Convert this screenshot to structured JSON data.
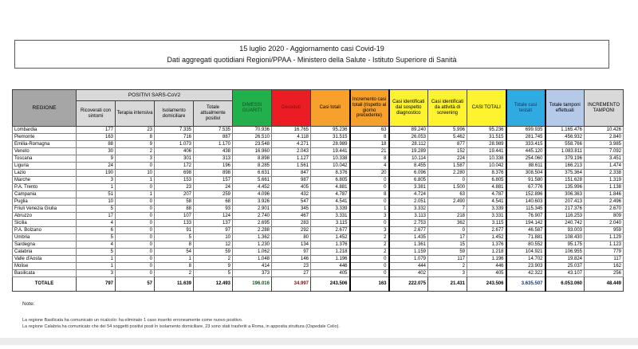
{
  "title": {
    "line1": "15 luglio 2020 - Aggiornamento casi Covid-19",
    "line2": "Dati aggregati quotidiani Regioni/PPAA - Ministero della Salute - Istituto Superiore di Sanità"
  },
  "colors": {
    "header_gray": "#a6a6a6",
    "subheader_gray": "#d9d9d9",
    "green": "#22b04c",
    "red": "#ec1c24",
    "orange": "#f7a02b",
    "yellow": "#fdf32e",
    "cyan": "#2fabe1",
    "periwinkle": "#b5c9e8"
  },
  "chart_data": {
    "type": "table",
    "group_headers": {
      "regione": "REGIONE",
      "positivi": "POSITIVI SARS-CoV2"
    },
    "columns": [
      {
        "label": "Ricoverati con sintomi",
        "type": "sub"
      },
      {
        "label": "Terapia intensiva",
        "type": "sub"
      },
      {
        "label": "Isolamento domiciliare",
        "type": "sub"
      },
      {
        "label": "Totale attualmente positivi",
        "type": "sub"
      },
      {
        "label": "DIMESSI GUARITI",
        "type": "green"
      },
      {
        "label": "Deceduti",
        "type": "red"
      },
      {
        "label": "Casi totali",
        "type": "orange"
      },
      {
        "label": "Incremento casi totali (rispetto al giorno precedente)",
        "type": "orange",
        "thick": true
      },
      {
        "label": "Casi identificati dal sospetto diagnostico",
        "type": "yellow"
      },
      {
        "label": "Casi identificati da attività di screening",
        "type": "yellow"
      },
      {
        "label": "CASI TOTALI",
        "type": "yellow"
      },
      {
        "label": "Totale casi testati",
        "type": "cyan",
        "thick": true
      },
      {
        "label": "Totale tamponi effettuati",
        "type": "peri"
      },
      {
        "label": "INCREMENTO TAMPONI",
        "type": "graylight"
      }
    ],
    "rows": [
      {
        "regione": "Lombardia",
        "values": [
          "177",
          "23",
          "7.335",
          "7.535",
          "70.936",
          "16.765",
          "95.236",
          "63",
          "89.240",
          "5.996",
          "95.236",
          "699.935",
          "1.165.476",
          "10.426"
        ]
      },
      {
        "regione": "Piemonte",
        "values": [
          "163",
          "8",
          "716",
          "887",
          "26.510",
          "4.118",
          "31.515",
          "8",
          "26.053",
          "5.462",
          "31.515",
          "281.745",
          "456.932",
          "2.840"
        ]
      },
      {
        "regione": "Emilia-Romagna",
        "values": [
          "88",
          "9",
          "1.073",
          "1.170",
          "23.548",
          "4.271",
          "28.989",
          "18",
          "28.112",
          "877",
          "28.989",
          "333.415",
          "558.766",
          "3.985"
        ]
      },
      {
        "regione": "Veneto",
        "values": [
          "30",
          "2",
          "406",
          "438",
          "16.960",
          "2.043",
          "19.441",
          "21",
          "19.289",
          "152",
          "19.441",
          "445.120",
          "1.083.811",
          "7.092"
        ]
      },
      {
        "regione": "Toscana",
        "values": [
          "9",
          "3",
          "301",
          "313",
          "8.898",
          "1.127",
          "10.338",
          "8",
          "10.114",
          "224",
          "10.338",
          "254.060",
          "379.196",
          "3.451"
        ]
      },
      {
        "regione": "Liguria",
        "values": [
          "24",
          "0",
          "172",
          "196",
          "8.285",
          "1.561",
          "10.042",
          "4",
          "8.455",
          "1.587",
          "10.042",
          "88.611",
          "166.213",
          "1.474"
        ]
      },
      {
        "regione": "Lazio",
        "values": [
          "190",
          "10",
          "698",
          "898",
          "6.631",
          "847",
          "8.376",
          "20",
          "6.096",
          "2.280",
          "8.376",
          "308.504",
          "375.364",
          "2.338"
        ]
      },
      {
        "regione": "Marche",
        "values": [
          "3",
          "1",
          "153",
          "157",
          "5.661",
          "987",
          "6.805",
          "0",
          "6.805",
          "0",
          "6.805",
          "91.580",
          "151.628",
          "1.319"
        ]
      },
      {
        "regione": "P.A. Trento",
        "values": [
          "1",
          "0",
          "23",
          "24",
          "4.452",
          "405",
          "4.881",
          "0",
          "3.381",
          "1.500",
          "4.881",
          "67.776",
          "135.996",
          "1.138"
        ]
      },
      {
        "regione": "Campania",
        "values": [
          "51",
          "1",
          "207",
          "259",
          "4.096",
          "432",
          "4.787",
          "8",
          "4.724",
          "63",
          "4.787",
          "152.896",
          "306.363",
          "1.846"
        ]
      },
      {
        "regione": "Puglia",
        "values": [
          "10",
          "0",
          "58",
          "68",
          "3.926",
          "547",
          "4.541",
          "0",
          "2.051",
          "2.490",
          "4.541",
          "140.603",
          "207.413",
          "2.496"
        ]
      },
      {
        "regione": "Friuli Venezia Giulia",
        "values": [
          "5",
          "0",
          "88",
          "93",
          "2.901",
          "345",
          "3.339",
          "1",
          "3.332",
          "7",
          "3.339",
          "115.345",
          "217.376",
          "2.670"
        ]
      },
      {
        "regione": "Abruzzo",
        "values": [
          "17",
          "0",
          "107",
          "124",
          "2.740",
          "467",
          "3.331",
          "3",
          "3.113",
          "218",
          "3.331",
          "76.907",
          "116.253",
          "809"
        ]
      },
      {
        "regione": "Sicilia",
        "values": [
          "4",
          "0",
          "133",
          "137",
          "2.695",
          "283",
          "3.115",
          "0",
          "2.753",
          "362",
          "3.115",
          "194.142",
          "240.742",
          "2.040"
        ]
      },
      {
        "regione": "P.A. Bolzano",
        "values": [
          "6",
          "0",
          "91",
          "97",
          "2.288",
          "292",
          "2.677",
          "3",
          "2.677",
          "0",
          "2.677",
          "46.587",
          "93.003",
          "959"
        ]
      },
      {
        "regione": "Umbria",
        "values": [
          "5",
          "0",
          "5",
          "10",
          "1.362",
          "80",
          "1.452",
          "2",
          "1.435",
          "17",
          "1.452",
          "71.881",
          "108.430",
          "1.129"
        ]
      },
      {
        "regione": "Sardegna",
        "values": [
          "4",
          "0",
          "8",
          "12",
          "1.230",
          "134",
          "1.376",
          "2",
          "1.361",
          "15",
          "1.376",
          "80.552",
          "95.175",
          "1.123"
        ]
      },
      {
        "regione": "Calabria",
        "values": [
          "5",
          "0",
          "54",
          "59",
          "1.062",
          "97",
          "1.218",
          "2",
          "1.159",
          "59",
          "1.218",
          "104.921",
          "106.955",
          "779"
        ]
      },
      {
        "regione": "Valle d'Aosta",
        "values": [
          "1",
          "0",
          "1",
          "2",
          "1.048",
          "146",
          "1.196",
          "0",
          "1.079",
          "117",
          "1.196",
          "14.702",
          "19.824",
          "117"
        ]
      },
      {
        "regione": "Molise",
        "values": [
          "1",
          "0",
          "8",
          "9",
          "414",
          "23",
          "446",
          "0",
          "444",
          "2",
          "446",
          "23.903",
          "25.037",
          "162"
        ]
      },
      {
        "regione": "Basilicata",
        "values": [
          "3",
          "0",
          "2",
          "5",
          "373",
          "27",
          "405",
          "0",
          "402",
          "3",
          "405",
          "42.322",
          "43.107",
          "256"
        ]
      }
    ],
    "totale": {
      "label": "TOTALE",
      "values": [
        "797",
        "57",
        "11.639",
        "12.493",
        "196.016",
        "34.997",
        "243.506",
        "163",
        "222.075",
        "21.431",
        "243.506",
        "3.635.507",
        "6.053.060",
        "48.449"
      ]
    }
  },
  "notes": {
    "title": "Note:",
    "lines": [
      "La regione Basilicata ha comunicato un ricalcolo: ha eliminato 1 caso inserito erroneamente come nuovo positivo.",
      "La regione Calabria ha comunicato che dei 54 soggetti positivi posti in isolamento domiciliare, 23 sono stati trasferiti a Roma, in apposita struttura (Ospedale Celio)."
    ]
  }
}
